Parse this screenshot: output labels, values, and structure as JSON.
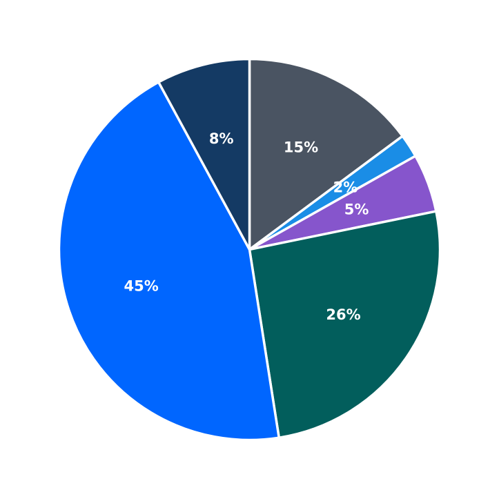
{
  "chart_data": {
    "type": "pie",
    "title": "",
    "start_angle_deg": 90,
    "direction": "clockwise",
    "slices": [
      {
        "value": 15,
        "label": "15%",
        "color": "#4a5462"
      },
      {
        "value": 2,
        "label": "2%",
        "color": "#1a8de6"
      },
      {
        "value": 5,
        "label": "5%",
        "color": "#8655cc"
      },
      {
        "value": 26,
        "label": "26%",
        "color": "#025e5c"
      },
      {
        "value": 45,
        "label": "45%",
        "color": "#0066ff"
      },
      {
        "value": 8,
        "label": "8%",
        "color": "#143a64"
      }
    ],
    "legend": "none"
  }
}
